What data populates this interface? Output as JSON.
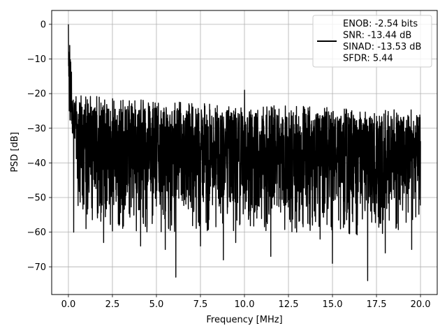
{
  "chart_data": {
    "type": "line",
    "xlabel": "Frequency [MHz]",
    "ylabel": "PSD [dB]",
    "xlim": [
      -0.95,
      20.95
    ],
    "ylim": [
      -78,
      4
    ],
    "x_ticks": [
      0.0,
      2.5,
      5.0,
      7.5,
      10.0,
      12.5,
      15.0,
      17.5,
      20.0
    ],
    "x_tick_labels": [
      "0.0",
      "2.5",
      "5.0",
      "7.5",
      "10.0",
      "12.5",
      "15.0",
      "17.5",
      "20.0"
    ],
    "y_ticks": [
      0,
      -10,
      -20,
      -30,
      -40,
      -50,
      -60,
      -70
    ],
    "y_tick_labels": [
      "0",
      "−10",
      "−20",
      "−30",
      "−40",
      "−50",
      "−60",
      "−70"
    ],
    "grid": true,
    "legend_position": "top-right",
    "series": [
      {
        "name": "ENOB: -2.54 bits\nSNR: -13.44 dB\nSINAD: -13.53 dB\nSFDR: 5.44",
        "color": "#000000",
        "x_range": [
          0,
          20
        ],
        "peak": {
          "x": 0.0,
          "y": 0
        },
        "spurs": [
          {
            "x": 10.0,
            "y": -19
          }
        ],
        "noise_upper_envelope": [
          [
            0.1,
            -22
          ],
          [
            2,
            -23
          ],
          [
            5,
            -24
          ],
          [
            10,
            -25
          ],
          [
            15,
            -26
          ],
          [
            17.5,
            -27
          ],
          [
            20,
            -26
          ]
        ],
        "noise_lower_envelope": [
          [
            0.1,
            -45
          ],
          [
            2,
            -55
          ],
          [
            5,
            -55
          ],
          [
            10,
            -55
          ],
          [
            15,
            -55
          ],
          [
            18,
            -57
          ],
          [
            20,
            -50
          ]
        ],
        "deep_nulls": [
          {
            "x": 0.3,
            "y": -60
          },
          {
            "x": 1.0,
            "y": -59
          },
          {
            "x": 2.0,
            "y": -63
          },
          {
            "x": 4.1,
            "y": -64
          },
          {
            "x": 5.5,
            "y": -65
          },
          {
            "x": 6.1,
            "y": -73
          },
          {
            "x": 7.5,
            "y": -64
          },
          {
            "x": 8.8,
            "y": -68
          },
          {
            "x": 9.5,
            "y": -63
          },
          {
            "x": 11.5,
            "y": -67
          },
          {
            "x": 14.3,
            "y": -62
          },
          {
            "x": 15.0,
            "y": -69
          },
          {
            "x": 17.0,
            "y": -74
          },
          {
            "x": 18.0,
            "y": -66
          },
          {
            "x": 19.5,
            "y": -65
          }
        ]
      }
    ]
  }
}
